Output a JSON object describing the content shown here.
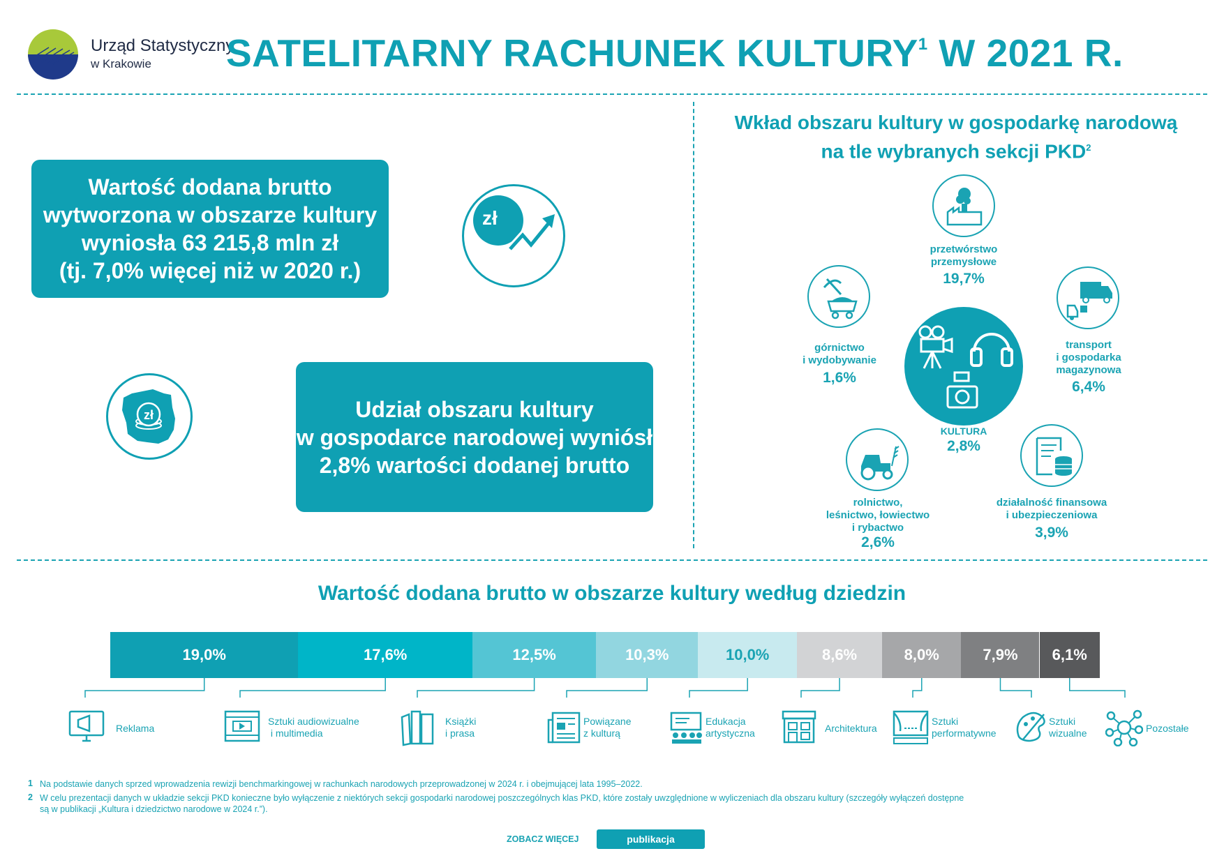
{
  "header": {
    "logo_line1": "Urząd Statystyczny",
    "logo_line2": "w Krakowie",
    "title": "SATELITARNY RACHUNEK KULTURY",
    "title_sup": "1",
    "title_suffix": " W 2021 R."
  },
  "box1": {
    "lines": [
      "Wartość dodana brutto",
      "wytworzona w obszarze kultury",
      "wyniosła 63 215,8 mln zł",
      "(tj. 7,0% więcej niż w 2020 r.)"
    ],
    "icon_text": "zł"
  },
  "box2": {
    "lines": [
      "Udział obszaru kultury",
      "w gospodarce narodowej wyniósł",
      "2,8% wartości dodanej brutto"
    ],
    "icon_text": "zł"
  },
  "pkd": {
    "title_line1": "Wkład obszaru kultury w gospodarkę narodową",
    "title_line2": "na tle wybranych sekcji PKD",
    "title_sup": "2",
    "center": {
      "label": "KULTURA",
      "value": "2,8%"
    },
    "items": {
      "przetworstwo": {
        "label_lines": [
          "przetwórstwo",
          "przemysłowe"
        ],
        "value": "19,7%"
      },
      "gornictwo": {
        "label_lines": [
          "górnictwo",
          "i wydobywanie"
        ],
        "value": "1,6%"
      },
      "transport": {
        "label_lines": [
          "transport",
          "i gospodarka",
          "magazynowa"
        ],
        "value": "6,4%"
      },
      "rolnictwo": {
        "label_lines": [
          "rolnictwo,",
          "leśnictwo, łowiectwo",
          "i rybactwo"
        ],
        "value": "2,6%"
      },
      "finanse": {
        "label_lines": [
          "działalność finansowa",
          "i ubezpieczeniowa"
        ],
        "value": "3,9%"
      }
    }
  },
  "bar": {
    "title": "Wartość dodana brutto w obszarze kultury według dziedzin",
    "segments": [
      {
        "value": 19.0,
        "label": "19,0%",
        "color": "#0fa0b3",
        "text": "#ffffff",
        "legend": [
          "Reklama"
        ]
      },
      {
        "value": 17.6,
        "label": "17,6%",
        "color": "#00b5c8",
        "text": "#ffffff",
        "legend": [
          "Sztuki audiowizualne",
          " i multimedia"
        ]
      },
      {
        "value": 12.5,
        "label": "12,5%",
        "color": "#54c5d4",
        "text": "#ffffff",
        "legend": [
          "Książki",
          "i prasa"
        ]
      },
      {
        "value": 10.3,
        "label": "10,3%",
        "color": "#92d6e0",
        "text": "#ffffff",
        "legend": [
          "Powiązane",
          "z kulturą"
        ]
      },
      {
        "value": 10.0,
        "label": "10,0%",
        "color": "#c8eaef",
        "text": "#1aa3b3",
        "legend": [
          "Edukacja",
          "artystyczna"
        ]
      },
      {
        "value": 8.6,
        "label": "8,6%",
        "color": "#d2d3d5",
        "text": "#ffffff",
        "legend": [
          "Architektura"
        ]
      },
      {
        "value": 8.0,
        "label": "8,0%",
        "color": "#a6a7a9",
        "text": "#ffffff",
        "legend": [
          "Sztuki",
          "performatywne"
        ]
      },
      {
        "value": 7.9,
        "label": "7,9%",
        "color": "#7f8082",
        "text": "#ffffff",
        "legend": [
          "Sztuki",
          "wizualne"
        ]
      },
      {
        "value": 6.1,
        "label": "6,1%",
        "color": "#58595b",
        "text": "#ffffff",
        "legend": [
          "Pozostałe"
        ]
      }
    ]
  },
  "footnotes": [
    {
      "num": "1",
      "text": "Na podstawie danych sprzed wprowadzenia rewizji benchmarkingowej w rachunkach narodowych przeprowadzonej w 2024 r. i obejmującej lata 1995–2022."
    },
    {
      "num": "2",
      "text": "W celu prezentacji danych w układzie sekcji PKD konieczne było wyłączenie z niektórych sekcji gospodarki narodowej poszczególnych klas PKD, które zostały uwzględnione w wyliczeniach dla obszaru kultury (szczegóły wyłączeń dostępne",
      "text2": "są w publikacji „Kultura i dziedzictwo narodowe w 2024 r.”)."
    }
  ],
  "footer": {
    "see_more": "ZOBACZ WIĘCEJ",
    "button": "publikacja"
  },
  "colors": {
    "accent": "#0fa0b3"
  }
}
